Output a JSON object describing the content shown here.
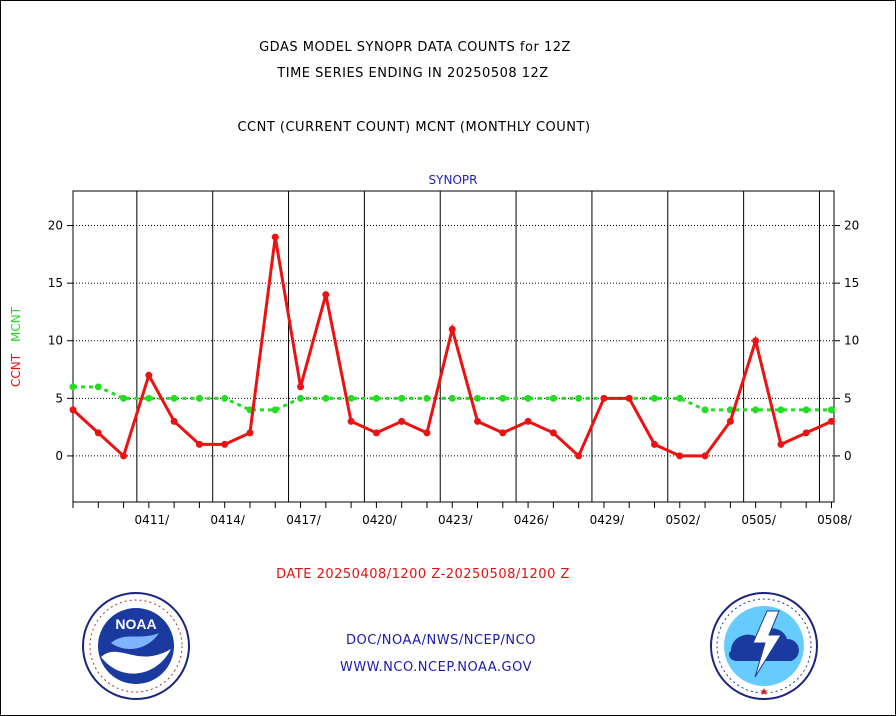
{
  "header": {
    "title_line1": "GDAS MODEL SYNOPR DATA COUNTS for 12Z",
    "title_line2": "TIME SERIES ENDING IN 20250508 12Z",
    "subtitle": "CCNT (CURRENT COUNT) MCNT (MONTHLY COUNT)"
  },
  "footer": {
    "date_range": "DATE 20250408/1200 Z-20250508/1200 Z",
    "org_line1": "DOC/NOAA/NWS/NCEP/NCO",
    "org_line2": "WWW.NCO.NCEP.NOAA.GOV"
  },
  "logos": {
    "left": "noaa-logo",
    "right": "nws-logo"
  },
  "colors": {
    "ccnt": "#ee1111",
    "mcnt": "#22dd22",
    "panel_title": "#2222bb"
  },
  "chart_data": {
    "type": "line",
    "panel_title": "SYNOPR",
    "ylabel_series": [
      "CCNT",
      "MCNT"
    ],
    "ylim": [
      -4,
      23
    ],
    "yticks": [
      0,
      5,
      10,
      15,
      20
    ],
    "grid": true,
    "x": [
      "0408",
      "0409",
      "0410",
      "0411",
      "0412",
      "0413",
      "0414",
      "0415",
      "0416",
      "0417",
      "0418",
      "0419",
      "0420",
      "0421",
      "0422",
      "0423",
      "0424",
      "0425",
      "0426",
      "0427",
      "0428",
      "0429",
      "0430",
      "0501",
      "0502",
      "0503",
      "0504",
      "0505",
      "0506",
      "0507",
      "0508"
    ],
    "xtick_labels": [
      "0411/",
      "0414/",
      "0417/",
      "0420/",
      "0423/",
      "0426/",
      "0429/",
      "0502/",
      "0505/",
      "0508/"
    ],
    "series": [
      {
        "name": "CCNT",
        "values": [
          4,
          2,
          0,
          7,
          3,
          1,
          1,
          2,
          19,
          6,
          14,
          3,
          2,
          3,
          2,
          11,
          3,
          2,
          3,
          2,
          0,
          5,
          5,
          1,
          0,
          0,
          3,
          10,
          1,
          2,
          3
        ]
      },
      {
        "name": "MCNT",
        "values": [
          6,
          6,
          5,
          5,
          5,
          5,
          5,
          4,
          4,
          5,
          5,
          5,
          5,
          5,
          5,
          5,
          5,
          5,
          5,
          5,
          5,
          5,
          5,
          5,
          5,
          4,
          4,
          4,
          4,
          4,
          4
        ]
      }
    ]
  }
}
